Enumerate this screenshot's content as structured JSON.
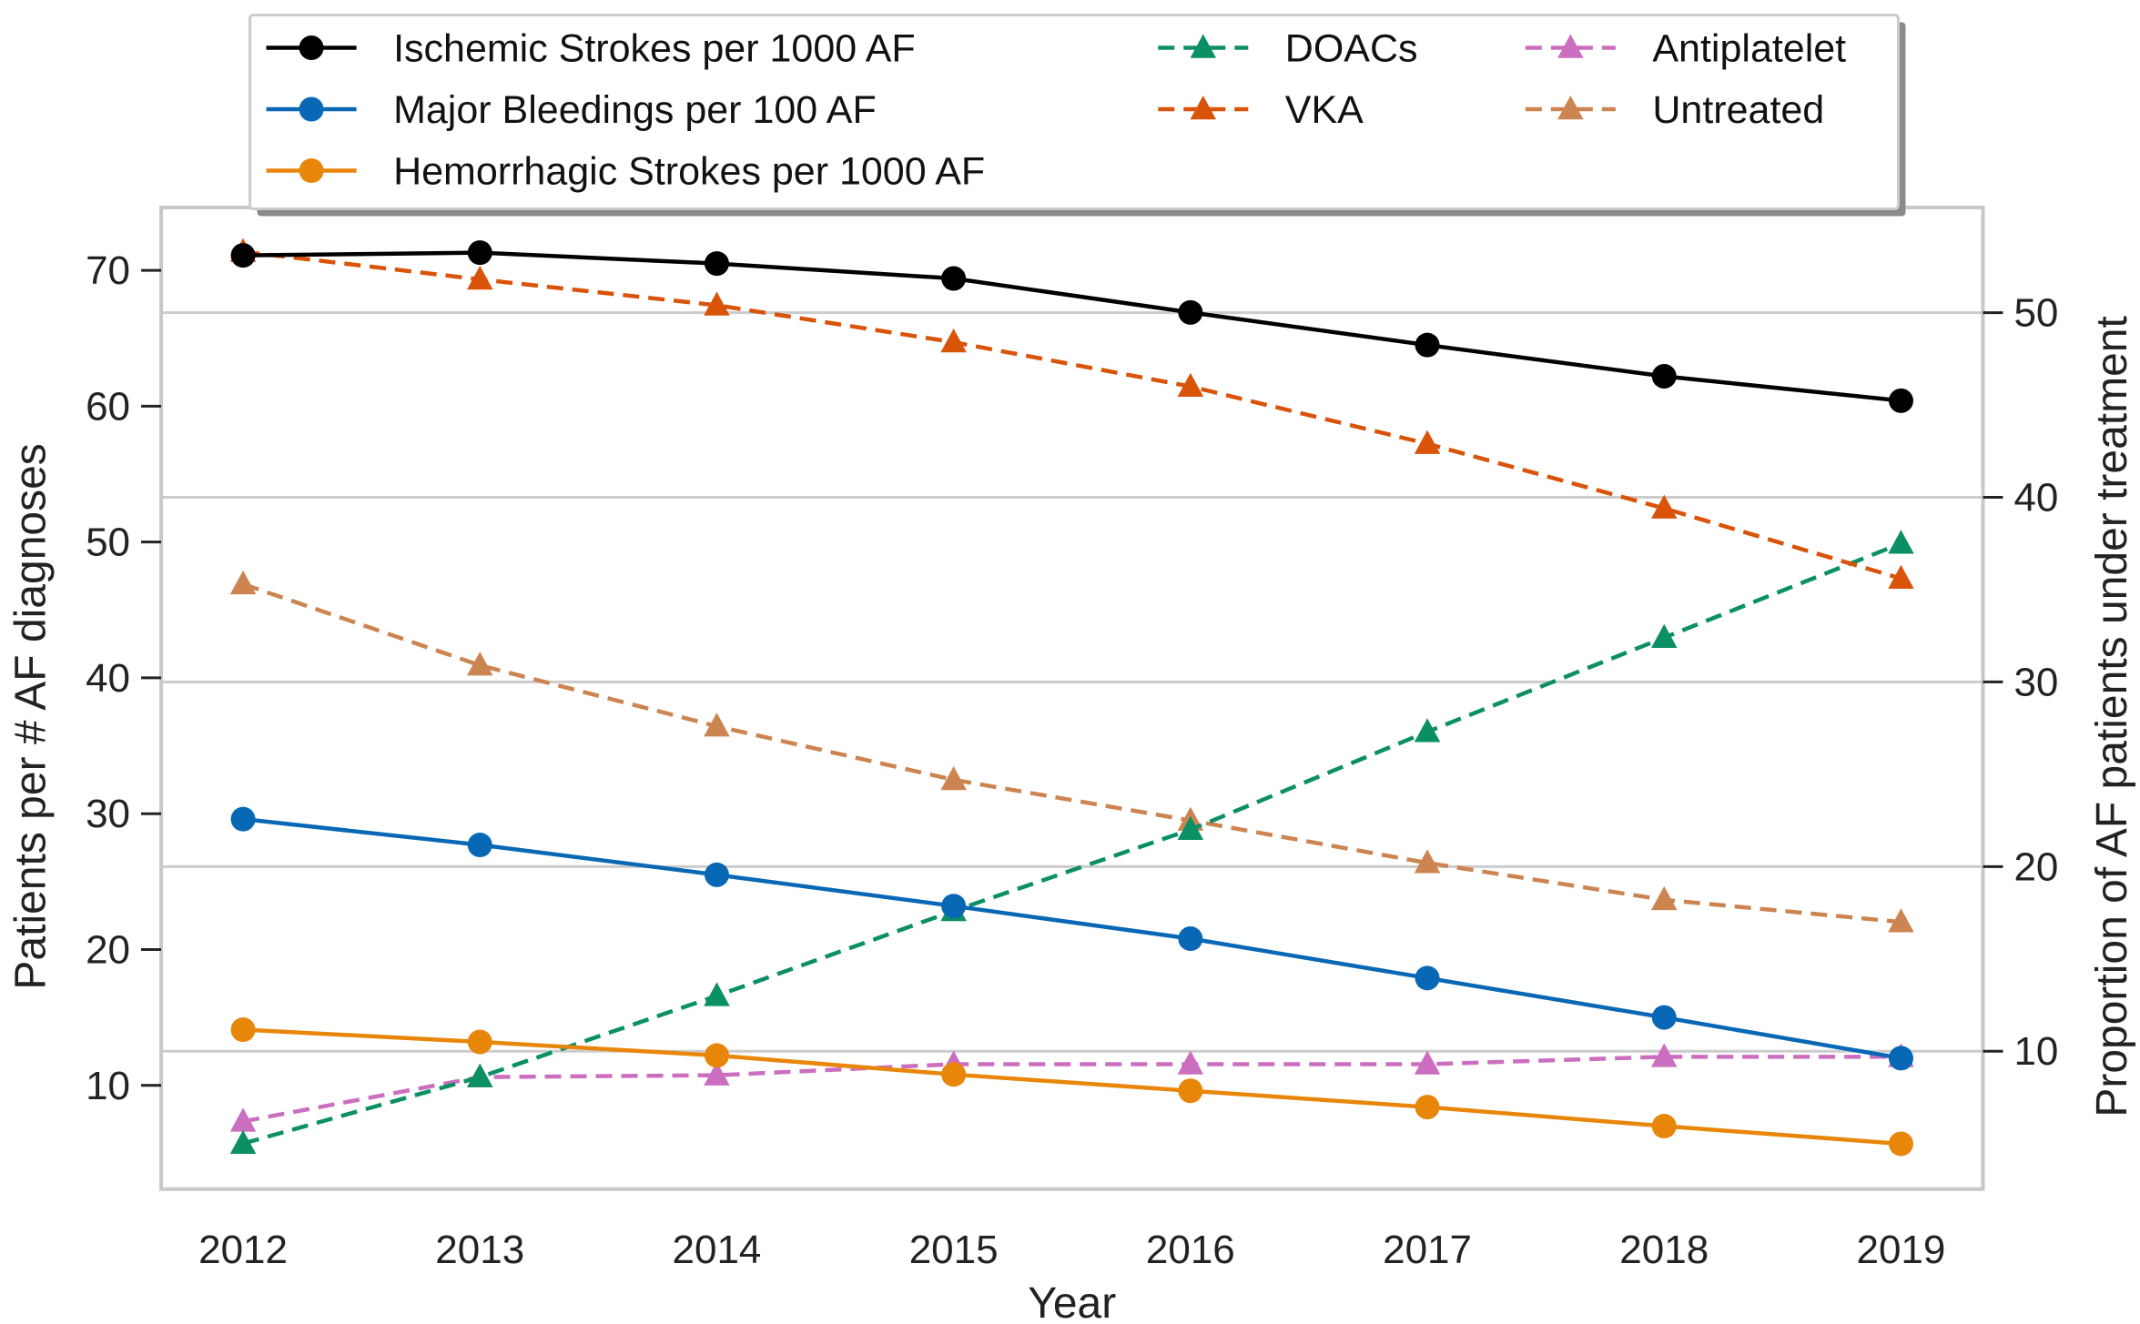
{
  "chart_data": {
    "type": "line",
    "title": "",
    "xlabel": "Year",
    "ylabel": "Patients per # AF diagnoses",
    "ylabel_right": "Proportion of AF patients under treatment",
    "x": [
      2012,
      2013,
      2014,
      2015,
      2016,
      2017,
      2018,
      2019
    ],
    "x_tick_labels": [
      "2012",
      "2013",
      "2014",
      "2015",
      "2016",
      "2017",
      "2018",
      "2019"
    ],
    "ylim": [
      3,
      74
    ],
    "ylim_right": [
      2,
      55
    ],
    "y_ticks": [
      10,
      20,
      30,
      40,
      50,
      60,
      70
    ],
    "y_ticks_right": [
      10,
      20,
      30,
      40,
      50
    ],
    "grid": "right-axis horizontal gridlines",
    "legend_position": "top-center",
    "series": [
      {
        "name": "Ischemic Strokes per 1000 AF",
        "axis": "left",
        "color": "#000000",
        "marker": "circle",
        "linestyle": "solid",
        "values": [
          71.1,
          71.3,
          70.5,
          69.4,
          66.9,
          64.5,
          62.2,
          60.4
        ]
      },
      {
        "name": "Major Bleedings per 100 AF",
        "axis": "left",
        "color": "#0868b5",
        "marker": "circle",
        "linestyle": "solid",
        "values": [
          29.6,
          27.7,
          25.5,
          23.2,
          20.8,
          17.9,
          15.0,
          12.0
        ]
      },
      {
        "name": "Hemorrhagic Strokes per 1000 AF",
        "axis": "left",
        "color": "#e8860a",
        "marker": "circle",
        "linestyle": "solid",
        "values": [
          14.1,
          13.2,
          12.2,
          10.8,
          9.6,
          8.4,
          7.0,
          5.7
        ]
      },
      {
        "name": "DOACs",
        "axis": "right",
        "color": "#0b8f64",
        "marker": "triangle",
        "linestyle": "dashed",
        "values": [
          5.0,
          8.6,
          13.0,
          17.6,
          22.0,
          27.3,
          32.4,
          37.5
        ]
      },
      {
        "name": "VKA",
        "axis": "right",
        "color": "#d95309",
        "marker": "triangle",
        "linestyle": "dashed",
        "values": [
          53.3,
          51.8,
          50.4,
          48.4,
          46.0,
          42.9,
          39.4,
          35.6
        ]
      },
      {
        "name": "Antiplatelet",
        "axis": "right",
        "color": "#cc6ec0",
        "marker": "triangle",
        "linestyle": "dashed",
        "values": [
          6.2,
          8.6,
          8.7,
          9.3,
          9.3,
          9.3,
          9.7,
          9.7
        ]
      },
      {
        "name": "Untreated",
        "axis": "right",
        "color": "#cc8450",
        "marker": "triangle",
        "linestyle": "dashed",
        "values": [
          35.3,
          30.9,
          27.6,
          24.7,
          22.5,
          20.2,
          18.2,
          17.0
        ]
      }
    ]
  }
}
